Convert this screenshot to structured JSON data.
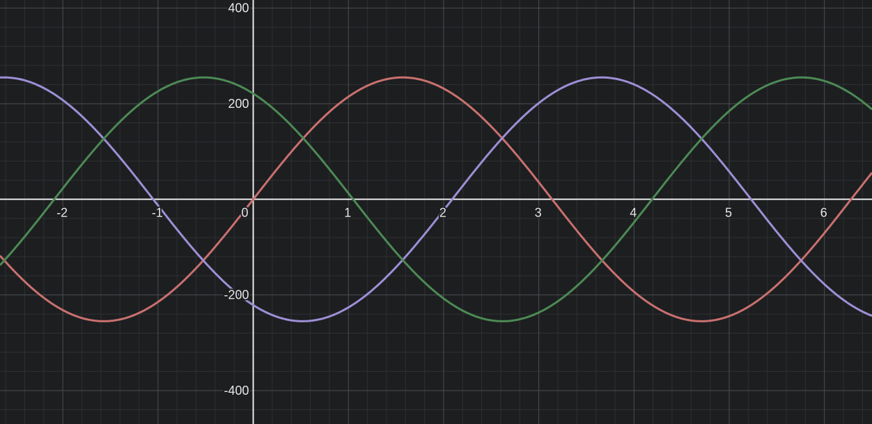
{
  "chart_data": {
    "type": "line",
    "title": "",
    "xlabel": "",
    "ylabel": "",
    "xlim": [
      -2.66,
      6.5
    ],
    "ylim": [
      -470,
      417
    ],
    "grid": true,
    "legend": "none",
    "background_color": "#1d1e20",
    "x_ticks": [
      {
        "value": -2,
        "label": "-2"
      },
      {
        "value": -1,
        "label": "-1"
      },
      {
        "value": 0,
        "label": "0"
      },
      {
        "value": 1,
        "label": "1"
      },
      {
        "value": 2,
        "label": "2"
      },
      {
        "value": 3,
        "label": "3"
      },
      {
        "value": 4,
        "label": "4"
      },
      {
        "value": 5,
        "label": "5"
      },
      {
        "value": 6,
        "label": "6"
      }
    ],
    "y_ticks": [
      {
        "value": 400,
        "label": "400"
      },
      {
        "value": 200,
        "label": "200"
      },
      {
        "value": -200,
        "label": "-200"
      },
      {
        "value": -400,
        "label": "-400"
      }
    ],
    "series": [
      {
        "color": "#c9716f",
        "amplitude": 255,
        "period": 6.28,
        "phase_shift": 0.0
      },
      {
        "color": "#9e8fd6",
        "amplitude": 255,
        "period": 6.28,
        "phase_shift": 2.09
      },
      {
        "color": "#4c8a55",
        "amplitude": 255,
        "period": 6.28,
        "phase_shift": 4.19
      }
    ]
  }
}
